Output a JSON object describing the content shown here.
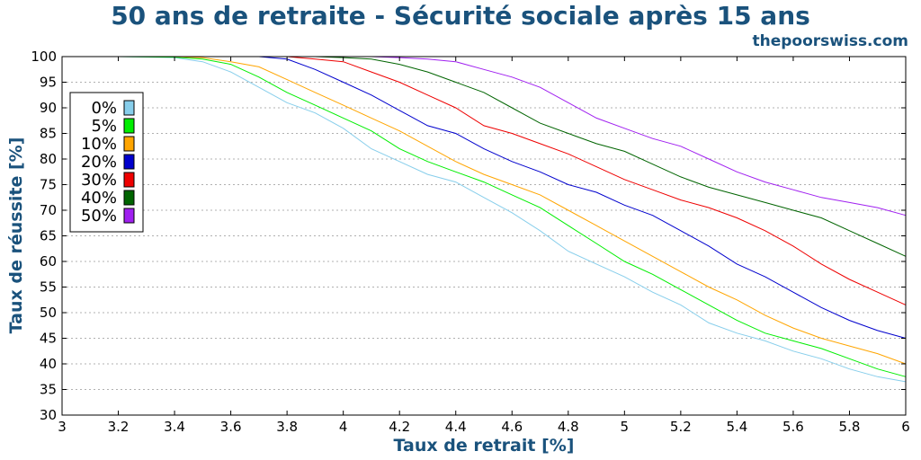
{
  "header": {
    "title": "50 ans de retraite - Sécurité sociale après 15 ans",
    "site": "thepoorswiss.com"
  },
  "colors": {
    "text": "#1a527c",
    "grid": "#b0b0b0"
  },
  "chart_data": {
    "type": "line",
    "xlabel": "Taux de retrait [%]",
    "ylabel": "Taux de réussite [%]",
    "xlim": [
      3,
      6
    ],
    "ylim": [
      30,
      100
    ],
    "xticks": [
      3,
      3.2,
      3.4,
      3.6,
      3.8,
      4,
      4.2,
      4.4,
      4.6,
      4.8,
      5,
      5.2,
      5.4,
      5.6,
      5.8,
      6
    ],
    "yticks": [
      30,
      35,
      40,
      45,
      50,
      55,
      60,
      65,
      70,
      75,
      80,
      85,
      90,
      95,
      100
    ],
    "grid": "horizontal dotted",
    "legend_position": "upper-left",
    "x": [
      3,
      3.2,
      3.4,
      3.5,
      3.6,
      3.7,
      3.8,
      3.9,
      4,
      4.1,
      4.2,
      4.3,
      4.4,
      4.5,
      4.6,
      4.7,
      4.8,
      4.9,
      5,
      5.1,
      5.2,
      5.3,
      5.4,
      5.5,
      5.6,
      5.7,
      5.8,
      5.9,
      6
    ],
    "series": [
      {
        "name": "0%",
        "color": "#87ceeb",
        "values": [
          100,
          100,
          99.8,
          99,
          97,
          94,
          91,
          89,
          86,
          82,
          79.5,
          77,
          75.5,
          72.5,
          69.5,
          66,
          62,
          59.5,
          57,
          54,
          51.5,
          48,
          46,
          44.5,
          42.5,
          41,
          39,
          37.5,
          36.5
        ]
      },
      {
        "name": "5%",
        "color": "#00ee00",
        "values": [
          100,
          100,
          99.9,
          99.5,
          98.5,
          96,
          93,
          90.5,
          88,
          85.5,
          82,
          79.5,
          77.5,
          75.5,
          73,
          70.5,
          67,
          63.5,
          60,
          57.5,
          54.5,
          51.5,
          48.5,
          46,
          44.5,
          43,
          41,
          39,
          37.5
        ]
      },
      {
        "name": "10%",
        "color": "#ffa500",
        "values": [
          100,
          100,
          100,
          99.8,
          99,
          98,
          95.5,
          93,
          90.5,
          88,
          85.5,
          82.5,
          79.5,
          77,
          75,
          73,
          70,
          67,
          64,
          61,
          58,
          55,
          52.5,
          49.5,
          47,
          45,
          43.5,
          42,
          40
        ]
      },
      {
        "name": "20%",
        "color": "#0000cd",
        "values": [
          100,
          100,
          100,
          100,
          100,
          100,
          99.5,
          97.5,
          95,
          92.5,
          89.5,
          86.5,
          85,
          82,
          79.5,
          77.5,
          75,
          73.5,
          71,
          69,
          66,
          63,
          59.5,
          57,
          54,
          51,
          48.5,
          46.5,
          45
        ]
      },
      {
        "name": "30%",
        "color": "#ee0000",
        "values": [
          100,
          100,
          100,
          100,
          100,
          100,
          100,
          99.5,
          99,
          97,
          95,
          92.5,
          90,
          86.5,
          85,
          83,
          81,
          78.5,
          76,
          74,
          72,
          70.5,
          68.5,
          66,
          63,
          59.5,
          56.5,
          54,
          51.5
        ]
      },
      {
        "name": "40%",
        "color": "#006400",
        "values": [
          100,
          100,
          100,
          100,
          100,
          100,
          100,
          100,
          99.8,
          99.5,
          98.5,
          97,
          95,
          93,
          90,
          87,
          85,
          83,
          81.5,
          79,
          76.5,
          74.5,
          73,
          71.5,
          70,
          68.5,
          66,
          63.5,
          61
        ]
      },
      {
        "name": "50%",
        "color": "#a020f0",
        "values": [
          100,
          100,
          100,
          100,
          100,
          100,
          100,
          100,
          100,
          100,
          99.8,
          99.5,
          99,
          97.5,
          96,
          94,
          91,
          88,
          86,
          84,
          82.5,
          80,
          77.5,
          75.5,
          74,
          72.5,
          71.5,
          70.5,
          69
        ]
      }
    ]
  }
}
